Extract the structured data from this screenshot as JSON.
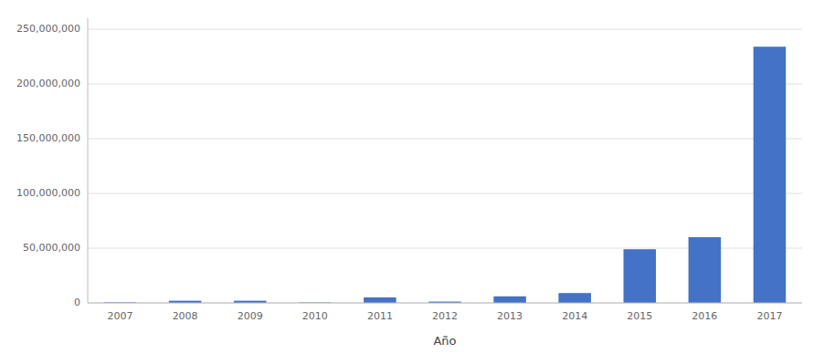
{
  "chart_data": {
    "type": "bar",
    "categories": [
      "2007",
      "2008",
      "2009",
      "2010",
      "2011",
      "2012",
      "2013",
      "2014",
      "2015",
      "2016",
      "2017"
    ],
    "values": [
      500000,
      2000000,
      2000000,
      400000,
      5000000,
      1200000,
      6000000,
      9000000,
      49000000,
      60000000,
      234000000
    ],
    "color": "#4472C4",
    "xlabel": "Año",
    "ylim": [
      0,
      260000000
    ],
    "yticks": [
      0,
      {
        "value": 50000000,
        "label": "50,000,000"
      },
      {
        "value": 100000000,
        "label": "100,000,000"
      },
      {
        "value": 150000000,
        "label": "150,000,000"
      },
      {
        "value": 200000000,
        "label": "200,000,000"
      },
      {
        "value": 250000000,
        "label": "250,000,000"
      }
    ],
    "grid": true
  }
}
